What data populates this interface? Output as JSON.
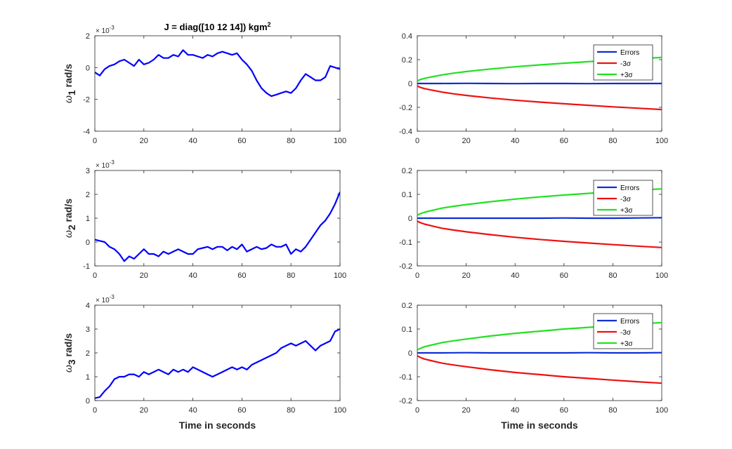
{
  "figure_title": {
    "main": "J = diag([10 12 14]) kgm",
    "sup": "2"
  },
  "colors": {
    "data": "#0000ff",
    "errors": "#0f2fd1",
    "minus": "#ee1111",
    "plus": "#22e022",
    "axis": "#262626"
  },
  "chart_data": [
    {
      "id": "omega1",
      "type": "line",
      "title": "J = diag([10 12 14]) kgm2",
      "ylabel_main": "ω",
      "ylabel_sub": "1",
      "ylabel_rest": " rad/s",
      "xlabel": "",
      "exponent_base": "× 10",
      "exponent_power": "-3",
      "xlim": [
        0,
        100
      ],
      "ylim": [
        -4,
        2
      ],
      "xticks": [
        0,
        20,
        40,
        60,
        80,
        100
      ],
      "yticks": [
        -4,
        -2,
        0,
        2
      ],
      "series": [
        {
          "name": "omega_1",
          "x": [
            0,
            2,
            4,
            6,
            8,
            10,
            12,
            14,
            16,
            18,
            20,
            22,
            24,
            26,
            28,
            30,
            32,
            34,
            36,
            38,
            40,
            42,
            44,
            46,
            48,
            50,
            52,
            54,
            56,
            58,
            60,
            62,
            64,
            66,
            68,
            70,
            72,
            74,
            76,
            78,
            80,
            82,
            84,
            86,
            88,
            90,
            92,
            94,
            96,
            98,
            100
          ],
          "y": [
            -0.3,
            -0.5,
            -0.1,
            0.1,
            0.2,
            0.4,
            0.5,
            0.3,
            0.1,
            0.5,
            0.2,
            0.3,
            0.5,
            0.8,
            0.6,
            0.6,
            0.8,
            0.7,
            1.1,
            0.8,
            0.8,
            0.7,
            0.6,
            0.8,
            0.7,
            0.9,
            1.0,
            0.9,
            0.8,
            0.9,
            0.5,
            0.2,
            -0.2,
            -0.8,
            -1.3,
            -1.6,
            -1.8,
            -1.7,
            -1.6,
            -1.5,
            -1.6,
            -1.3,
            -0.8,
            -0.4,
            -0.6,
            -0.8,
            -0.8,
            -0.6,
            0.1,
            0.0,
            -0.1
          ]
        }
      ]
    },
    {
      "id": "err1",
      "type": "line",
      "xlabel": "",
      "xlim": [
        0,
        100
      ],
      "ylim": [
        -0.4,
        0.4
      ],
      "xticks": [
        0,
        20,
        40,
        60,
        80,
        100
      ],
      "yticks": [
        -0.4,
        -0.2,
        0,
        0.2,
        0.4
      ],
      "legend": [
        "Errors",
        "-3σ",
        "+3σ"
      ],
      "sigma3_at_end": 0.22,
      "sigma3_at_start": 0.02,
      "series": [
        {
          "name": "Errors",
          "x": [
            0,
            10,
            20,
            30,
            40,
            50,
            60,
            70,
            80,
            90,
            100
          ],
          "y": [
            0.0,
            0.0,
            0.001,
            0.0,
            -0.001,
            0.0,
            0.0,
            -0.001,
            0.0,
            0.0,
            0.0
          ]
        },
        {
          "name": "-3σ",
          "x": [
            0,
            1,
            3,
            5,
            10,
            15,
            20,
            30,
            40,
            50,
            60,
            70,
            80,
            90,
            100
          ],
          "y": [
            -0.02,
            -0.031,
            -0.043,
            -0.052,
            -0.072,
            -0.087,
            -0.1,
            -0.122,
            -0.14,
            -0.156,
            -0.17,
            -0.183,
            -0.196,
            -0.207,
            -0.218
          ]
        },
        {
          "name": "+3σ",
          "x": [
            0,
            1,
            3,
            5,
            10,
            15,
            20,
            30,
            40,
            50,
            60,
            70,
            80,
            90,
            100
          ],
          "y": [
            0.02,
            0.031,
            0.043,
            0.052,
            0.072,
            0.087,
            0.1,
            0.122,
            0.14,
            0.156,
            0.17,
            0.183,
            0.196,
            0.207,
            0.218
          ]
        }
      ]
    },
    {
      "id": "omega2",
      "type": "line",
      "ylabel_main": "ω",
      "ylabel_sub": "2",
      "ylabel_rest": " rad/s",
      "xlabel": "",
      "exponent_base": "× 10",
      "exponent_power": "-3",
      "xlim": [
        0,
        100
      ],
      "ylim": [
        -1,
        3
      ],
      "xticks": [
        0,
        20,
        40,
        60,
        80,
        100
      ],
      "yticks": [
        -1,
        0,
        1,
        2,
        3
      ],
      "series": [
        {
          "name": "omega_2",
          "x": [
            0,
            2,
            4,
            6,
            8,
            10,
            12,
            14,
            16,
            18,
            20,
            22,
            24,
            26,
            28,
            30,
            32,
            34,
            36,
            38,
            40,
            42,
            44,
            46,
            48,
            50,
            52,
            54,
            56,
            58,
            60,
            62,
            64,
            66,
            68,
            70,
            72,
            74,
            76,
            78,
            80,
            82,
            84,
            86,
            88,
            90,
            92,
            94,
            96,
            98,
            100
          ],
          "y": [
            0.1,
            0.05,
            0.0,
            -0.2,
            -0.3,
            -0.5,
            -0.8,
            -0.6,
            -0.7,
            -0.5,
            -0.3,
            -0.5,
            -0.5,
            -0.6,
            -0.4,
            -0.5,
            -0.4,
            -0.3,
            -0.4,
            -0.5,
            -0.5,
            -0.3,
            -0.25,
            -0.2,
            -0.3,
            -0.2,
            -0.2,
            -0.35,
            -0.2,
            -0.3,
            -0.1,
            -0.4,
            -0.3,
            -0.2,
            -0.3,
            -0.25,
            -0.1,
            -0.2,
            -0.2,
            -0.1,
            -0.5,
            -0.3,
            -0.4,
            -0.2,
            0.1,
            0.4,
            0.7,
            0.9,
            1.2,
            1.6,
            2.1
          ]
        }
      ]
    },
    {
      "id": "err2",
      "type": "line",
      "xlabel": "",
      "xlim": [
        0,
        100
      ],
      "ylim": [
        -0.2,
        0.2
      ],
      "xticks": [
        0,
        20,
        40,
        60,
        80,
        100
      ],
      "yticks": [
        -0.2,
        -0.1,
        0,
        0.1,
        0.2
      ],
      "legend": [
        "Errors",
        "-3σ",
        "+3σ"
      ],
      "series": [
        {
          "name": "Errors",
          "x": [
            0,
            10,
            20,
            30,
            40,
            50,
            60,
            70,
            80,
            90,
            100
          ],
          "y": [
            0.0,
            0.0,
            0.0,
            0.0,
            0.0,
            0.0,
            0.001,
            0.0,
            0.0,
            0.001,
            0.002
          ]
        },
        {
          "name": "-3σ",
          "x": [
            0,
            1,
            3,
            5,
            10,
            15,
            20,
            30,
            40,
            50,
            60,
            70,
            80,
            90,
            100
          ],
          "y": [
            -0.012,
            -0.018,
            -0.025,
            -0.03,
            -0.042,
            -0.05,
            -0.057,
            -0.069,
            -0.08,
            -0.089,
            -0.097,
            -0.104,
            -0.111,
            -0.117,
            -0.123
          ]
        },
        {
          "name": "+3σ",
          "x": [
            0,
            1,
            3,
            5,
            10,
            15,
            20,
            30,
            40,
            50,
            60,
            70,
            80,
            90,
            100
          ],
          "y": [
            0.012,
            0.018,
            0.025,
            0.03,
            0.042,
            0.05,
            0.057,
            0.069,
            0.08,
            0.089,
            0.097,
            0.104,
            0.111,
            0.117,
            0.123
          ]
        }
      ]
    },
    {
      "id": "omega3",
      "type": "line",
      "ylabel_main": "ω",
      "ylabel_sub": "3",
      "ylabel_rest": " rad/s",
      "xlabel": "Time in seconds",
      "exponent_base": "× 10",
      "exponent_power": "-3",
      "xlim": [
        0,
        100
      ],
      "ylim": [
        0,
        4
      ],
      "xticks": [
        0,
        20,
        40,
        60,
        80,
        100
      ],
      "yticks": [
        0,
        1,
        2,
        3,
        4
      ],
      "series": [
        {
          "name": "omega_3",
          "x": [
            0,
            2,
            4,
            6,
            8,
            10,
            12,
            14,
            16,
            18,
            20,
            22,
            24,
            26,
            28,
            30,
            32,
            34,
            36,
            38,
            40,
            42,
            44,
            46,
            48,
            50,
            52,
            54,
            56,
            58,
            60,
            62,
            64,
            66,
            68,
            70,
            72,
            74,
            76,
            78,
            80,
            82,
            84,
            86,
            88,
            90,
            92,
            94,
            96,
            98,
            100
          ],
          "y": [
            0.1,
            0.15,
            0.4,
            0.6,
            0.9,
            1.0,
            1.0,
            1.1,
            1.1,
            1.0,
            1.2,
            1.1,
            1.2,
            1.3,
            1.2,
            1.1,
            1.3,
            1.2,
            1.3,
            1.2,
            1.4,
            1.3,
            1.2,
            1.1,
            1.0,
            1.1,
            1.2,
            1.3,
            1.4,
            1.3,
            1.4,
            1.3,
            1.5,
            1.6,
            1.7,
            1.8,
            1.9,
            2.0,
            2.2,
            2.3,
            2.4,
            2.3,
            2.4,
            2.5,
            2.3,
            2.1,
            2.3,
            2.4,
            2.5,
            2.9,
            3.0
          ]
        }
      ]
    },
    {
      "id": "err3",
      "type": "line",
      "xlabel": "Time in seconds",
      "xlim": [
        0,
        100
      ],
      "ylim": [
        -0.2,
        0.2
      ],
      "xticks": [
        0,
        20,
        40,
        60,
        80,
        100
      ],
      "yticks": [
        -0.2,
        -0.1,
        0,
        0.1,
        0.2
      ],
      "legend": [
        "Errors",
        "-3σ",
        "+3σ"
      ],
      "series": [
        {
          "name": "Errors",
          "x": [
            0,
            10,
            20,
            30,
            40,
            50,
            60,
            70,
            80,
            90,
            100
          ],
          "y": [
            0.0,
            0.0,
            0.001,
            0.0,
            0.0,
            0.0,
            0.0,
            0.001,
            0.0,
            0.0,
            0.001
          ]
        },
        {
          "name": "-3σ",
          "x": [
            0,
            1,
            3,
            5,
            10,
            15,
            20,
            30,
            40,
            50,
            60,
            70,
            80,
            90,
            100
          ],
          "y": [
            -0.012,
            -0.018,
            -0.026,
            -0.031,
            -0.043,
            -0.051,
            -0.058,
            -0.071,
            -0.082,
            -0.091,
            -0.1,
            -0.107,
            -0.114,
            -0.121,
            -0.127
          ]
        },
        {
          "name": "+3σ",
          "x": [
            0,
            1,
            3,
            5,
            10,
            15,
            20,
            30,
            40,
            50,
            60,
            70,
            80,
            90,
            100
          ],
          "y": [
            0.012,
            0.018,
            0.026,
            0.031,
            0.043,
            0.051,
            0.058,
            0.071,
            0.082,
            0.091,
            0.1,
            0.107,
            0.114,
            0.121,
            0.127
          ]
        }
      ]
    }
  ]
}
